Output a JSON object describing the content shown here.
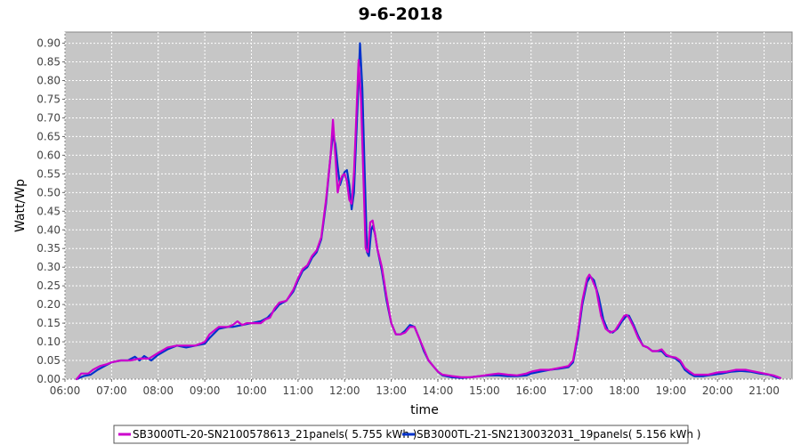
{
  "chart_data": {
    "type": "line",
    "title": "9-6-2018",
    "xlabel": "time",
    "ylabel": "Watt/Wp",
    "x_unit": "hour of day",
    "xlim": [
      6.0,
      21.6
    ],
    "ylim": [
      0.0,
      0.93
    ],
    "x_ticks": [
      "06:00",
      "07:00",
      "08:00",
      "09:00",
      "10:00",
      "11:00",
      "12:00",
      "13:00",
      "14:00",
      "15:00",
      "16:00",
      "17:00",
      "18:00",
      "19:00",
      "20:00",
      "21:00"
    ],
    "y_ticks": [
      "0.00",
      "0.05",
      "0.10",
      "0.15",
      "0.20",
      "0.25",
      "0.30",
      "0.35",
      "0.40",
      "0.45",
      "0.50",
      "0.55",
      "0.60",
      "0.65",
      "0.70",
      "0.75",
      "0.80",
      "0.85",
      "0.90"
    ],
    "grid": true,
    "legend_position": "bottom",
    "series": [
      {
        "name": "SB3000TL-20-SN2100578613_21panels( 5.755 kWh )",
        "color": "#cc00cc",
        "points": [
          [
            6.25,
            0.0
          ],
          [
            6.35,
            0.015
          ],
          [
            6.5,
            0.015
          ],
          [
            6.6,
            0.025
          ],
          [
            6.75,
            0.035
          ],
          [
            6.9,
            0.04
          ],
          [
            7.0,
            0.045
          ],
          [
            7.2,
            0.05
          ],
          [
            7.4,
            0.05
          ],
          [
            7.6,
            0.055
          ],
          [
            7.8,
            0.055
          ],
          [
            8.0,
            0.07
          ],
          [
            8.2,
            0.085
          ],
          [
            8.4,
            0.09
          ],
          [
            8.6,
            0.09
          ],
          [
            8.8,
            0.09
          ],
          [
            9.0,
            0.1
          ],
          [
            9.1,
            0.12
          ],
          [
            9.3,
            0.14
          ],
          [
            9.5,
            0.14
          ],
          [
            9.6,
            0.145
          ],
          [
            9.7,
            0.155
          ],
          [
            9.8,
            0.145
          ],
          [
            9.9,
            0.15
          ],
          [
            10.0,
            0.15
          ],
          [
            10.2,
            0.15
          ],
          [
            10.3,
            0.16
          ],
          [
            10.4,
            0.165
          ],
          [
            10.5,
            0.19
          ],
          [
            10.6,
            0.205
          ],
          [
            10.75,
            0.21
          ],
          [
            10.9,
            0.24
          ],
          [
            11.0,
            0.27
          ],
          [
            11.1,
            0.295
          ],
          [
            11.2,
            0.305
          ],
          [
            11.3,
            0.33
          ],
          [
            11.4,
            0.345
          ],
          [
            11.5,
            0.38
          ],
          [
            11.6,
            0.48
          ],
          [
            11.7,
            0.6
          ],
          [
            11.75,
            0.695
          ],
          [
            11.8,
            0.6
          ],
          [
            11.85,
            0.5
          ],
          [
            11.9,
            0.53
          ],
          [
            11.95,
            0.545
          ],
          [
            12.0,
            0.55
          ],
          [
            12.05,
            0.53
          ],
          [
            12.1,
            0.48
          ],
          [
            12.15,
            0.47
          ],
          [
            12.2,
            0.55
          ],
          [
            12.25,
            0.7
          ],
          [
            12.3,
            0.855
          ],
          [
            12.35,
            0.75
          ],
          [
            12.4,
            0.55
          ],
          [
            12.45,
            0.35
          ],
          [
            12.5,
            0.34
          ],
          [
            12.55,
            0.42
          ],
          [
            12.6,
            0.425
          ],
          [
            12.65,
            0.39
          ],
          [
            12.7,
            0.35
          ],
          [
            12.8,
            0.3
          ],
          [
            12.9,
            0.22
          ],
          [
            13.0,
            0.15
          ],
          [
            13.1,
            0.12
          ],
          [
            13.2,
            0.12
          ],
          [
            13.3,
            0.125
          ],
          [
            13.4,
            0.14
          ],
          [
            13.5,
            0.14
          ],
          [
            13.6,
            0.11
          ],
          [
            13.7,
            0.08
          ],
          [
            13.8,
            0.05
          ],
          [
            13.9,
            0.035
          ],
          [
            14.0,
            0.02
          ],
          [
            14.1,
            0.012
          ],
          [
            14.3,
            0.008
          ],
          [
            14.5,
            0.005
          ],
          [
            14.7,
            0.005
          ],
          [
            14.9,
            0.008
          ],
          [
            15.1,
            0.012
          ],
          [
            15.3,
            0.015
          ],
          [
            15.5,
            0.012
          ],
          [
            15.7,
            0.01
          ],
          [
            15.9,
            0.015
          ],
          [
            16.0,
            0.02
          ],
          [
            16.2,
            0.025
          ],
          [
            16.4,
            0.025
          ],
          [
            16.6,
            0.03
          ],
          [
            16.8,
            0.035
          ],
          [
            16.9,
            0.05
          ],
          [
            17.0,
            0.12
          ],
          [
            17.1,
            0.21
          ],
          [
            17.2,
            0.27
          ],
          [
            17.25,
            0.28
          ],
          [
            17.3,
            0.27
          ],
          [
            17.4,
            0.24
          ],
          [
            17.5,
            0.17
          ],
          [
            17.6,
            0.135
          ],
          [
            17.7,
            0.125
          ],
          [
            17.8,
            0.13
          ],
          [
            17.9,
            0.15
          ],
          [
            18.0,
            0.17
          ],
          [
            18.05,
            0.172
          ],
          [
            18.1,
            0.165
          ],
          [
            18.2,
            0.14
          ],
          [
            18.3,
            0.11
          ],
          [
            18.4,
            0.09
          ],
          [
            18.5,
            0.085
          ],
          [
            18.6,
            0.075
          ],
          [
            18.7,
            0.075
          ],
          [
            18.8,
            0.08
          ],
          [
            18.9,
            0.065
          ],
          [
            19.0,
            0.06
          ],
          [
            19.1,
            0.058
          ],
          [
            19.2,
            0.05
          ],
          [
            19.3,
            0.03
          ],
          [
            19.4,
            0.02
          ],
          [
            19.5,
            0.012
          ],
          [
            19.6,
            0.012
          ],
          [
            19.8,
            0.012
          ],
          [
            20.0,
            0.018
          ],
          [
            20.2,
            0.02
          ],
          [
            20.4,
            0.025
          ],
          [
            20.6,
            0.025
          ],
          [
            20.8,
            0.02
          ],
          [
            21.0,
            0.015
          ],
          [
            21.2,
            0.01
          ],
          [
            21.35,
            0.003
          ]
        ]
      },
      {
        "name": "SB3000TL-21-SN2130032031_19panels( 5.156 kWh )",
        "color": "#0033cc",
        "points": [
          [
            6.25,
            0.0
          ],
          [
            6.4,
            0.008
          ],
          [
            6.55,
            0.012
          ],
          [
            6.7,
            0.025
          ],
          [
            6.85,
            0.035
          ],
          [
            7.0,
            0.045
          ],
          [
            7.2,
            0.05
          ],
          [
            7.35,
            0.05
          ],
          [
            7.5,
            0.06
          ],
          [
            7.6,
            0.05
          ],
          [
            7.7,
            0.062
          ],
          [
            7.85,
            0.05
          ],
          [
            8.0,
            0.065
          ],
          [
            8.2,
            0.08
          ],
          [
            8.4,
            0.09
          ],
          [
            8.6,
            0.085
          ],
          [
            8.8,
            0.09
          ],
          [
            9.0,
            0.095
          ],
          [
            9.1,
            0.11
          ],
          [
            9.3,
            0.135
          ],
          [
            9.5,
            0.14
          ],
          [
            9.6,
            0.14
          ],
          [
            9.8,
            0.145
          ],
          [
            10.0,
            0.15
          ],
          [
            10.2,
            0.155
          ],
          [
            10.35,
            0.165
          ],
          [
            10.5,
            0.185
          ],
          [
            10.6,
            0.2
          ],
          [
            10.75,
            0.21
          ],
          [
            10.9,
            0.235
          ],
          [
            11.0,
            0.265
          ],
          [
            11.1,
            0.29
          ],
          [
            11.2,
            0.3
          ],
          [
            11.3,
            0.325
          ],
          [
            11.4,
            0.34
          ],
          [
            11.5,
            0.375
          ],
          [
            11.6,
            0.47
          ],
          [
            11.7,
            0.6
          ],
          [
            11.75,
            0.655
          ],
          [
            11.8,
            0.63
          ],
          [
            11.85,
            0.57
          ],
          [
            11.9,
            0.52
          ],
          [
            11.95,
            0.54
          ],
          [
            12.0,
            0.555
          ],
          [
            12.05,
            0.56
          ],
          [
            12.1,
            0.52
          ],
          [
            12.15,
            0.455
          ],
          [
            12.2,
            0.5
          ],
          [
            12.25,
            0.65
          ],
          [
            12.3,
            0.8
          ],
          [
            12.33,
            0.9
          ],
          [
            12.38,
            0.78
          ],
          [
            12.43,
            0.55
          ],
          [
            12.48,
            0.34
          ],
          [
            12.52,
            0.33
          ],
          [
            12.57,
            0.4
          ],
          [
            12.6,
            0.41
          ],
          [
            12.65,
            0.39
          ],
          [
            12.7,
            0.35
          ],
          [
            12.8,
            0.29
          ],
          [
            12.9,
            0.21
          ],
          [
            13.0,
            0.15
          ],
          [
            13.1,
            0.12
          ],
          [
            13.2,
            0.12
          ],
          [
            13.3,
            0.13
          ],
          [
            13.4,
            0.145
          ],
          [
            13.5,
            0.14
          ],
          [
            13.6,
            0.11
          ],
          [
            13.7,
            0.075
          ],
          [
            13.8,
            0.05
          ],
          [
            13.9,
            0.035
          ],
          [
            14.0,
            0.02
          ],
          [
            14.1,
            0.01
          ],
          [
            14.3,
            0.005
          ],
          [
            14.5,
            0.003
          ],
          [
            14.7,
            0.005
          ],
          [
            14.9,
            0.008
          ],
          [
            15.1,
            0.01
          ],
          [
            15.3,
            0.01
          ],
          [
            15.5,
            0.008
          ],
          [
            15.7,
            0.008
          ],
          [
            15.9,
            0.01
          ],
          [
            16.0,
            0.015
          ],
          [
            16.2,
            0.02
          ],
          [
            16.4,
            0.025
          ],
          [
            16.6,
            0.028
          ],
          [
            16.8,
            0.032
          ],
          [
            16.9,
            0.045
          ],
          [
            17.0,
            0.11
          ],
          [
            17.1,
            0.2
          ],
          [
            17.2,
            0.26
          ],
          [
            17.27,
            0.275
          ],
          [
            17.35,
            0.265
          ],
          [
            17.45,
            0.22
          ],
          [
            17.55,
            0.16
          ],
          [
            17.65,
            0.13
          ],
          [
            17.75,
            0.125
          ],
          [
            17.85,
            0.135
          ],
          [
            17.95,
            0.155
          ],
          [
            18.05,
            0.17
          ],
          [
            18.1,
            0.17
          ],
          [
            18.2,
            0.145
          ],
          [
            18.3,
            0.115
          ],
          [
            18.4,
            0.09
          ],
          [
            18.5,
            0.085
          ],
          [
            18.6,
            0.075
          ],
          [
            18.7,
            0.075
          ],
          [
            18.8,
            0.075
          ],
          [
            18.9,
            0.062
          ],
          [
            19.0,
            0.06
          ],
          [
            19.1,
            0.055
          ],
          [
            19.2,
            0.045
          ],
          [
            19.3,
            0.025
          ],
          [
            19.4,
            0.015
          ],
          [
            19.5,
            0.008
          ],
          [
            19.7,
            0.008
          ],
          [
            19.9,
            0.012
          ],
          [
            20.1,
            0.015
          ],
          [
            20.3,
            0.02
          ],
          [
            20.5,
            0.022
          ],
          [
            20.7,
            0.02
          ],
          [
            20.9,
            0.015
          ],
          [
            21.1,
            0.012
          ],
          [
            21.3,
            0.003
          ]
        ]
      }
    ]
  }
}
